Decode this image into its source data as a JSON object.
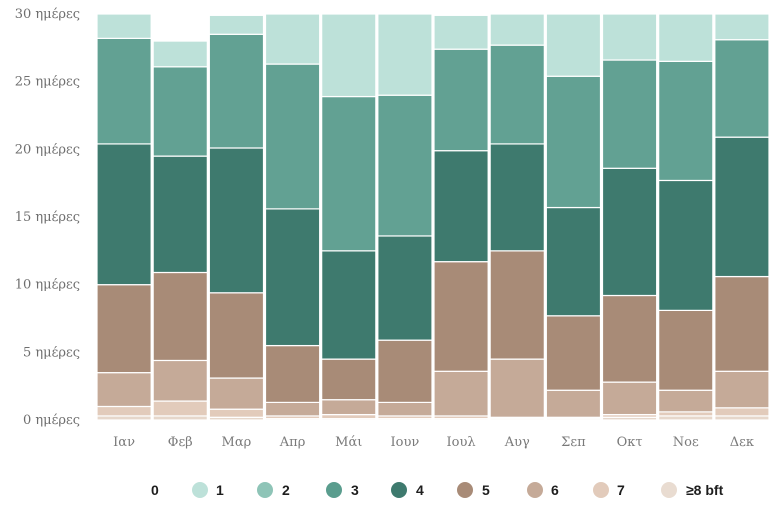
{
  "chart_data": {
    "type": "bar",
    "stacked": true,
    "categories": [
      "Ιαν",
      "Φεβ",
      "Μαρ",
      "Απρ",
      "Μάι",
      "Ιουν",
      "Ιουλ",
      "Αυγ",
      "Σεπ",
      "Οκτ",
      "Νοε",
      "Δεκ"
    ],
    "ylim": [
      0,
      30
    ],
    "yticks": [
      {
        "value": 0,
        "label": "0 ημέρες"
      },
      {
        "value": 5,
        "label": "5 ημέρες"
      },
      {
        "value": 10,
        "label": "10 ημέρες"
      },
      {
        "value": 15,
        "label": "15 ημέρες"
      },
      {
        "value": 20,
        "label": "20 ημέρες"
      },
      {
        "value": 25,
        "label": "25 ημέρες"
      },
      {
        "value": 30,
        "label": "30 ημέρες"
      }
    ],
    "series": [
      {
        "name": "≥8 bft",
        "color": "#e6d7cb",
        "values": [
          0.3,
          0.3,
          0.2,
          0.1,
          0.1,
          0.1,
          0.1,
          0.1,
          0.1,
          0.2,
          0.3,
          0.3
        ]
      },
      {
        "name": "7",
        "color": "#e2cbbb",
        "values": [
          0.7,
          1.1,
          0.6,
          0.2,
          0.3,
          0.2,
          0.2,
          0.1,
          0.1,
          0.2,
          0.3,
          0.6
        ]
      },
      {
        "name": "6",
        "color": "#c5aa98",
        "values": [
          2.5,
          3.0,
          2.3,
          1.0,
          1.1,
          1.0,
          3.3,
          4.3,
          2.0,
          2.4,
          1.6,
          2.7
        ]
      },
      {
        "name": "5",
        "color": "#a88b77",
        "values": [
          6.5,
          6.5,
          6.3,
          4.2,
          3.0,
          4.6,
          8.1,
          8.0,
          5.5,
          6.4,
          5.9,
          7.0
        ]
      },
      {
        "name": "4",
        "color": "#3e7a6e",
        "values": [
          10.4,
          8.6,
          10.7,
          10.1,
          8.0,
          7.7,
          8.2,
          7.9,
          8.0,
          9.4,
          9.6,
          10.3
        ]
      },
      {
        "name": "3",
        "color": "#62a193",
        "values": [
          7.8,
          6.6,
          8.4,
          10.7,
          11.4,
          10.4,
          7.5,
          7.3,
          9.7,
          8.0,
          8.8,
          7.2
        ]
      },
      {
        "name": "2",
        "color": "#bde1d9",
        "values": [
          1.8,
          1.9,
          1.4,
          3.7,
          6.1,
          6.0,
          2.5,
          2.3,
          4.6,
          3.4,
          3.5,
          1.9
        ]
      },
      {
        "name": "1",
        "color": "#dcefea",
        "values": [
          0,
          0,
          0,
          0,
          0,
          0,
          0,
          0,
          0,
          0,
          0,
          0
        ]
      }
    ],
    "legend": {
      "placement": "bottom",
      "items": [
        {
          "label": "0",
          "color": ""
        },
        {
          "label": "1",
          "color": "#bde1d9"
        },
        {
          "label": "2",
          "color": "#8ec4b7"
        },
        {
          "label": "3",
          "color": "#5a9d8e"
        },
        {
          "label": "4",
          "color": "#3e7a6e"
        },
        {
          "label": "5",
          "color": "#a88b77"
        },
        {
          "label": "6",
          "color": "#c5aa98"
        },
        {
          "label": "7",
          "color": "#e2cbbb"
        },
        {
          "label": "≥8 bft",
          "color": "#e9dcd1"
        }
      ]
    },
    "grid": false
  }
}
